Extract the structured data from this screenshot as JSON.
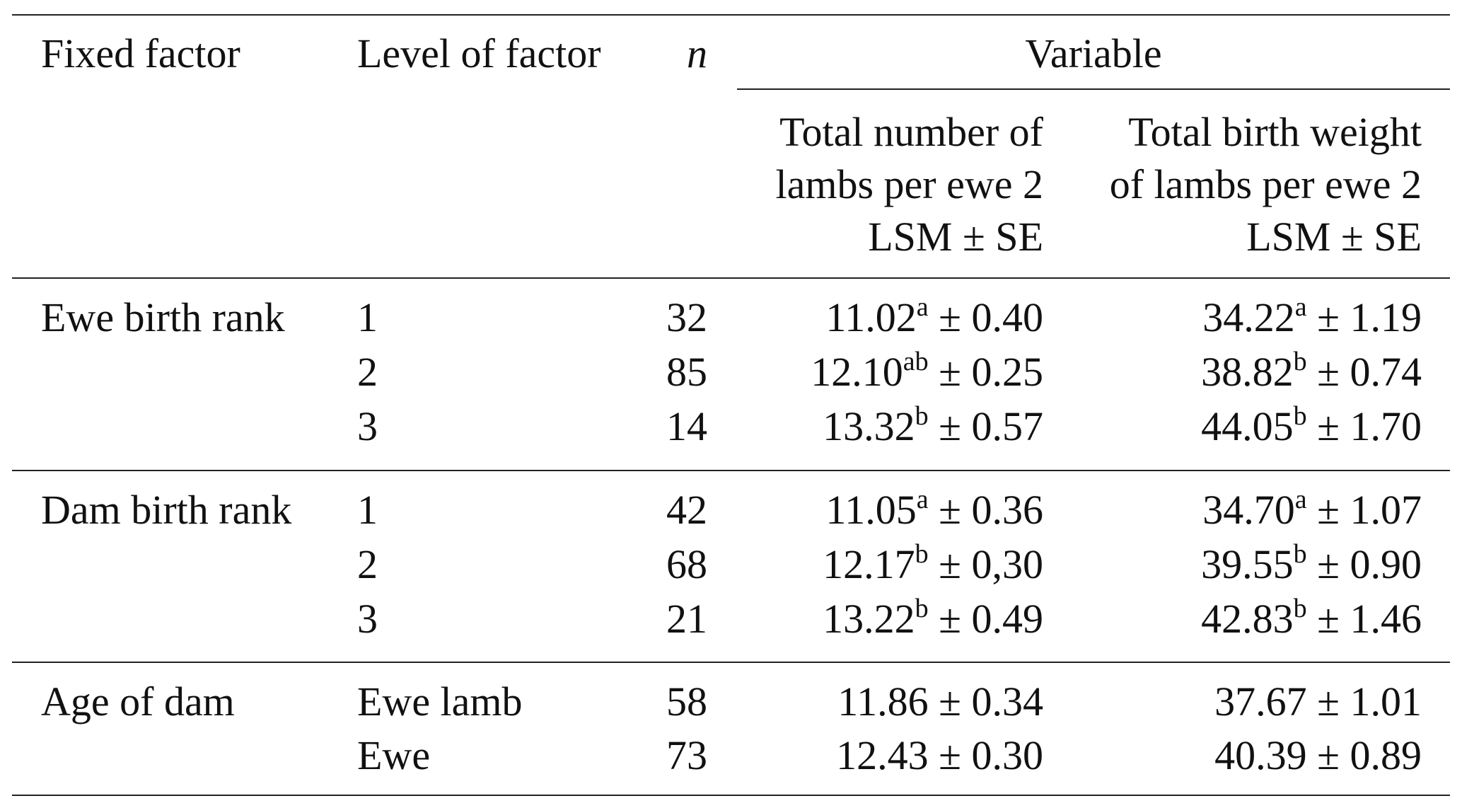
{
  "headers": {
    "fixed_factor": "Fixed factor",
    "level_of_factor": "Level of factor",
    "n": "n",
    "variable": "Variable",
    "col1": [
      "Total number of",
      "lambs per ewe 2",
      "LSM ± SE"
    ],
    "col2": [
      "Total birth weight",
      "of lambs per ewe 2",
      "LSM ± SE"
    ]
  },
  "groups": [
    {
      "factor": "Ewe birth rank",
      "rows": [
        {
          "level": "1",
          "n": "32",
          "v1": {
            "mean": "11.02",
            "sup": "a",
            "se": "± 0.40"
          },
          "v2": {
            "mean": "34.22",
            "sup": "a",
            "se": "± 1.19"
          }
        },
        {
          "level": "2",
          "n": "85",
          "v1": {
            "mean": "12.10",
            "sup": "ab",
            "se": "± 0.25"
          },
          "v2": {
            "mean": "38.82",
            "sup": "b",
            "se": "± 0.74"
          }
        },
        {
          "level": "3",
          "n": "14",
          "v1": {
            "mean": "13.32",
            "sup": "b",
            "se": "± 0.57"
          },
          "v2": {
            "mean": "44.05",
            "sup": "b",
            "se": "± 1.70"
          }
        }
      ]
    },
    {
      "factor": "Dam birth rank",
      "rows": [
        {
          "level": "1",
          "n": "42",
          "v1": {
            "mean": "11.05",
            "sup": "a",
            "se": "± 0.36"
          },
          "v2": {
            "mean": "34.70",
            "sup": "a",
            "se": "± 1.07"
          }
        },
        {
          "level": "2",
          "n": "68",
          "v1": {
            "mean": "12.17",
            "sup": "b",
            "se": "± 0,30"
          },
          "v2": {
            "mean": "39.55",
            "sup": "b",
            "se": "± 0.90"
          }
        },
        {
          "level": "3",
          "n": "21",
          "v1": {
            "mean": "13.22",
            "sup": "b",
            "se": "± 0.49"
          },
          "v2": {
            "mean": "42.83",
            "sup": "b",
            "se": "± 1.46"
          }
        }
      ]
    },
    {
      "factor": "Age of dam",
      "rows": [
        {
          "level": "Ewe lamb",
          "n": "58",
          "v1": {
            "mean": "11.86",
            "sup": "",
            "se": "± 0.34"
          },
          "v2": {
            "mean": "37.67",
            "sup": "",
            "se": "± 1.01"
          }
        },
        {
          "level": "Ewe",
          "n": "73",
          "v1": {
            "mean": "12.43",
            "sup": "",
            "se": "± 0.30"
          },
          "v2": {
            "mean": "40.39",
            "sup": "",
            "se": "± 0.89"
          }
        }
      ]
    }
  ]
}
